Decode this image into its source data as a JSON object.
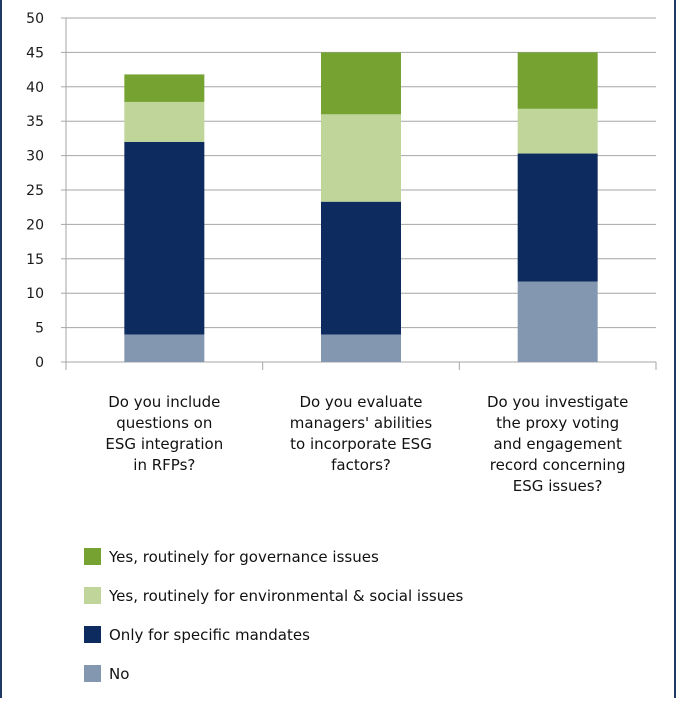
{
  "chart_data": {
    "type": "bar",
    "stacked": true,
    "title": "",
    "xlabel": "",
    "ylabel": "",
    "ylim": [
      0,
      50
    ],
    "yticks": [
      0,
      5,
      10,
      15,
      20,
      25,
      30,
      35,
      40,
      45,
      50
    ],
    "grid": true,
    "legend_position": "bottom",
    "categories": [
      "Do you include questions on ESG integration in RFPs?",
      "Do you evaluate managers' abilities to incorporate ESG factors?",
      "Do you investigate the proxy voting and engagement record concerning ESG issues?"
    ],
    "category_lines": [
      [
        "Do you include",
        "questions on",
        "ESG integration",
        "in RFPs?"
      ],
      [
        "Do you evaluate",
        "managers' abilities",
        "to incorporate ESG",
        "factors?"
      ],
      [
        "Do you investigate",
        "the proxy voting",
        "and engagement",
        "record concerning",
        "ESG issues?"
      ]
    ],
    "series": [
      {
        "name": "No",
        "color": "#8497b0",
        "values": [
          4,
          4,
          11.7
        ]
      },
      {
        "name": "Only for specific mandates",
        "color": "#0d2b5e",
        "values": [
          28,
          19.3,
          18.6
        ]
      },
      {
        "name": "Yes, routinely for environmental & social issues",
        "color": "#bfd59a",
        "values": [
          5.8,
          12.7,
          6.5
        ]
      },
      {
        "name": "Yes, routinely for governance issues",
        "color": "#76a232",
        "values": [
          4,
          9,
          8.2
        ]
      }
    ]
  }
}
